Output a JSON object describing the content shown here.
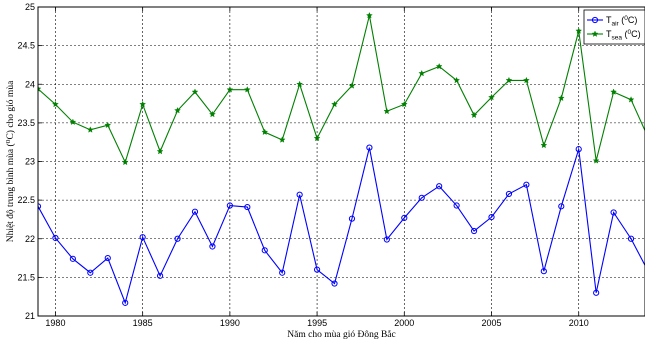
{
  "chart_data": {
    "type": "line",
    "xlabel": "Năm cho mùa gió Đông Bắc",
    "ylabel": "Nhiệt độ trung bình mùa (⁰C) cho gió mùa",
    "xlim": [
      1979,
      2013.8
    ],
    "ylim": [
      21,
      25
    ],
    "x_ticks": [
      1980,
      1985,
      1990,
      1995,
      2000,
      2005,
      2010
    ],
    "y_ticks": [
      21,
      21.5,
      22,
      22.5,
      23,
      23.5,
      24,
      24.5,
      25
    ],
    "x_tick_labels": [
      "1980",
      "1985",
      "1990",
      "1995",
      "2000",
      "2005",
      "2010"
    ],
    "y_tick_labels": [
      "21",
      "21.5",
      "22",
      "22.5",
      "23",
      "23.5",
      "24",
      "24.5",
      "25"
    ],
    "grid": true,
    "legend_position": "top-right",
    "x": [
      1979,
      1980,
      1981,
      1982,
      1983,
      1984,
      1985,
      1986,
      1987,
      1988,
      1989,
      1990,
      1991,
      1992,
      1993,
      1994,
      1995,
      1996,
      1997,
      1998,
      1999,
      2000,
      2001,
      2002,
      2003,
      2004,
      2005,
      2006,
      2007,
      2008,
      2009,
      2010,
      2011,
      2012,
      2013,
      2014
    ],
    "series": [
      {
        "name": "T_air (⁰C)",
        "legend_main": "T",
        "legend_sub": "air",
        "legend_unit_open": " (",
        "legend_unit_sup": "0",
        "legend_unit_close": "C)",
        "color": "#0000ff",
        "marker": "circle",
        "values": [
          22.42,
          22.01,
          21.74,
          21.56,
          21.75,
          21.17,
          22.02,
          21.52,
          22.0,
          22.35,
          21.9,
          22.43,
          22.41,
          21.85,
          21.56,
          22.57,
          21.6,
          21.42,
          22.26,
          23.18,
          21.99,
          22.27,
          22.53,
          22.68,
          22.43,
          22.1,
          22.28,
          22.58,
          22.7,
          21.58,
          22.42,
          23.16,
          21.3,
          22.34,
          22.0,
          21.57
        ]
      },
      {
        "name": "T_sea (⁰C)",
        "legend_main": "T",
        "legend_sub": "sea",
        "legend_unit_open": " (",
        "legend_unit_sup": "0",
        "legend_unit_close": "C)",
        "color": "#008000",
        "marker": "star",
        "values": [
          23.94,
          23.74,
          23.51,
          23.41,
          23.47,
          22.99,
          23.74,
          23.13,
          23.66,
          23.9,
          23.61,
          23.93,
          23.93,
          23.38,
          23.28,
          24.0,
          23.3,
          23.74,
          23.98,
          24.89,
          23.65,
          23.74,
          24.14,
          24.23,
          24.05,
          23.6,
          23.83,
          24.05,
          24.05,
          23.21,
          23.82,
          24.69,
          23.01,
          23.9,
          23.8,
          23.3
        ]
      }
    ]
  }
}
